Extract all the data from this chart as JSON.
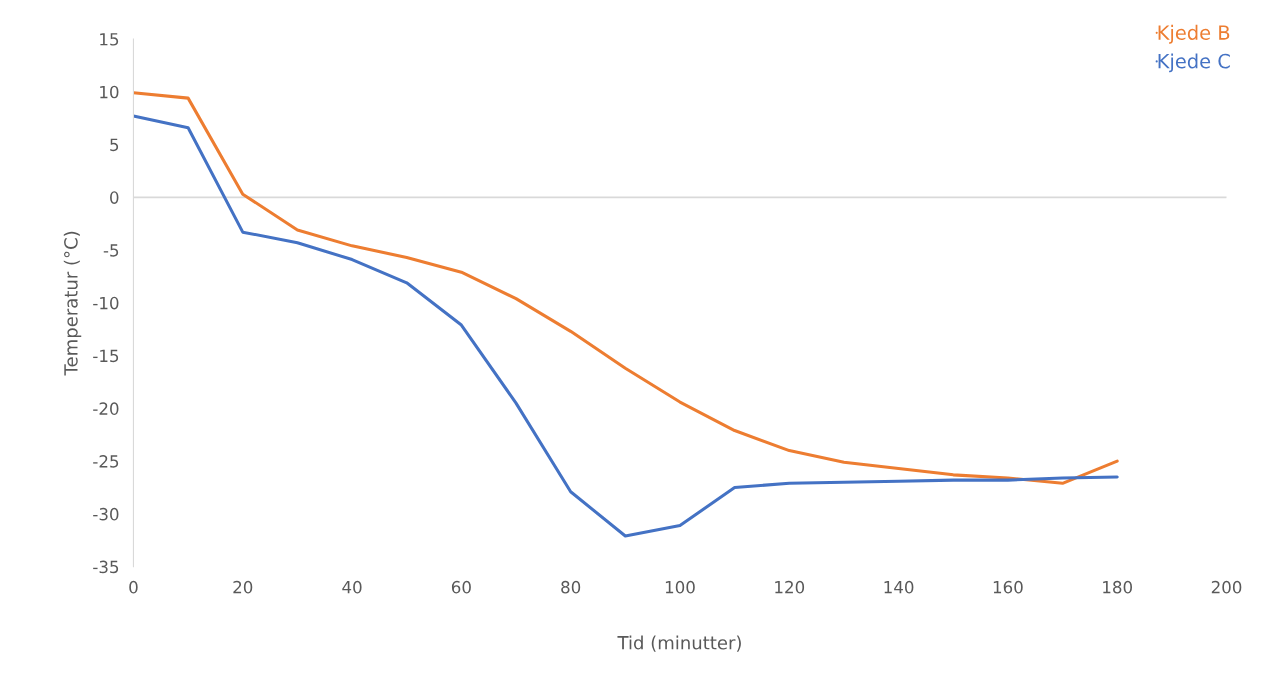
{
  "chart_data": {
    "type": "line",
    "xlabel": "Tid (minutter)",
    "ylabel": "Temperatur (°C)",
    "x": [
      0,
      10,
      20,
      30,
      40,
      50,
      60,
      70,
      80,
      90,
      100,
      110,
      120,
      130,
      140,
      150,
      160,
      170,
      180
    ],
    "series": [
      {
        "name": "Kjede B",
        "color": "#ed7d31",
        "values": [
          9.9,
          9.4,
          0.3,
          -3.1,
          -4.6,
          -5.7,
          -7.1,
          -9.6,
          -12.7,
          -16.2,
          -19.4,
          -22.1,
          -24.0,
          -25.1,
          -25.7,
          -26.3,
          -26.6,
          -27.1,
          -25.0
        ]
      },
      {
        "name": "Kjede C",
        "color": "#4472c4",
        "values": [
          7.7,
          6.6,
          -3.3,
          -4.3,
          -5.9,
          -8.1,
          -12.1,
          -19.5,
          -27.9,
          -32.1,
          -31.1,
          -27.5,
          -27.1,
          -27.0,
          -26.9,
          -26.8,
          -26.8,
          -26.6,
          -26.5
        ]
      }
    ],
    "xlim": [
      0,
      200
    ],
    "xticks": [
      0,
      20,
      40,
      60,
      80,
      100,
      120,
      140,
      160,
      180,
      200
    ],
    "ylim": [
      -35,
      15
    ],
    "yticks": [
      -35,
      -30,
      -25,
      -20,
      -15,
      -10,
      -5,
      0,
      5,
      10,
      15
    ],
    "ref_lines": [
      {
        "axis": "y",
        "value": 0,
        "color": "#d9d9d9"
      }
    ],
    "grid": false,
    "legend": "top right",
    "marker": "none",
    "line_style": "solid"
  }
}
